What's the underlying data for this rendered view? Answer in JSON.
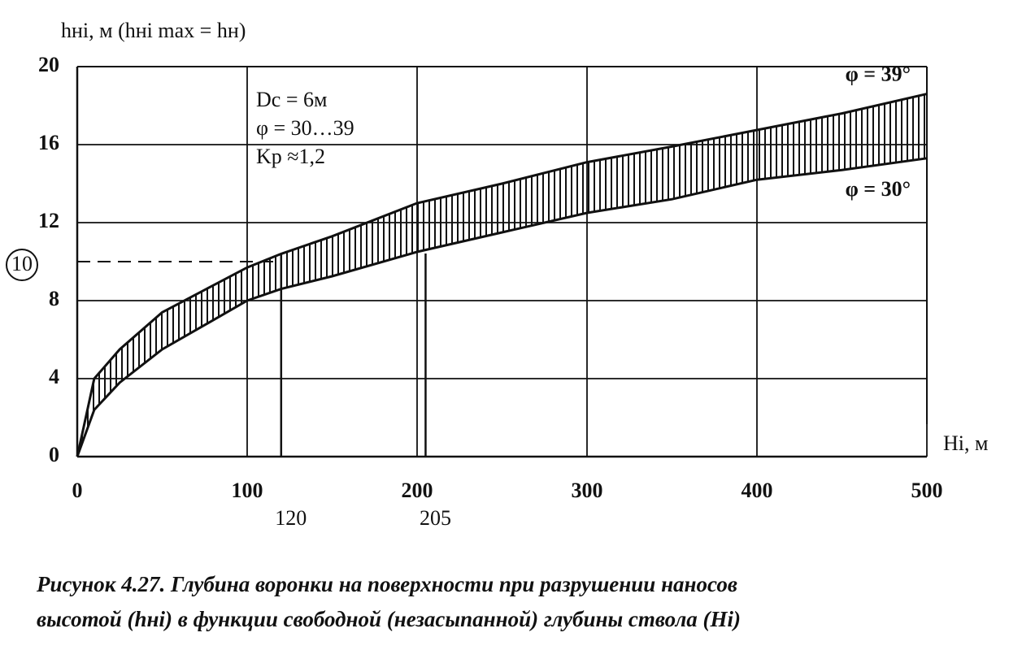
{
  "chart_data": {
    "type": "line",
    "y_axis_label": "hнi, м (hнi max = hн)",
    "x_axis_label": "Hi, м",
    "x": [
      0,
      10,
      25,
      50,
      100,
      120,
      150,
      200,
      250,
      300,
      350,
      400,
      450,
      500
    ],
    "series": [
      {
        "name": "φ = 39°",
        "color": "#111111",
        "values": [
          0,
          4.0,
          5.5,
          7.4,
          9.7,
          10.4,
          11.3,
          13.0,
          14.0,
          15.1,
          15.9,
          16.75,
          17.6,
          18.6
        ]
      },
      {
        "name": "φ = 30°",
        "color": "#111111",
        "values": [
          0,
          2.4,
          3.8,
          5.5,
          8.0,
          8.6,
          9.25,
          10.5,
          11.5,
          12.5,
          13.2,
          14.2,
          14.7,
          15.3
        ]
      }
    ],
    "xlim": [
      0,
      500
    ],
    "xticks": [
      0,
      100,
      200,
      300,
      400,
      500
    ],
    "ylim": [
      0,
      20
    ],
    "yticks": [
      0,
      4,
      8,
      12,
      16,
      20
    ],
    "grid": true,
    "reference_x": [
      120,
      205
    ],
    "reference_y": 10,
    "annotation_lines": [
      "Dc = 6м",
      "φ = 30…39",
      "Kp ≈1,2"
    ],
    "caption_lines": [
      "Рисунок 4.27. Глубина воронки на поверхности при разрушении наносов",
      "высотой (hнi) в функции свободной (незасыпанной) глубины ствола (Hi)"
    ]
  }
}
